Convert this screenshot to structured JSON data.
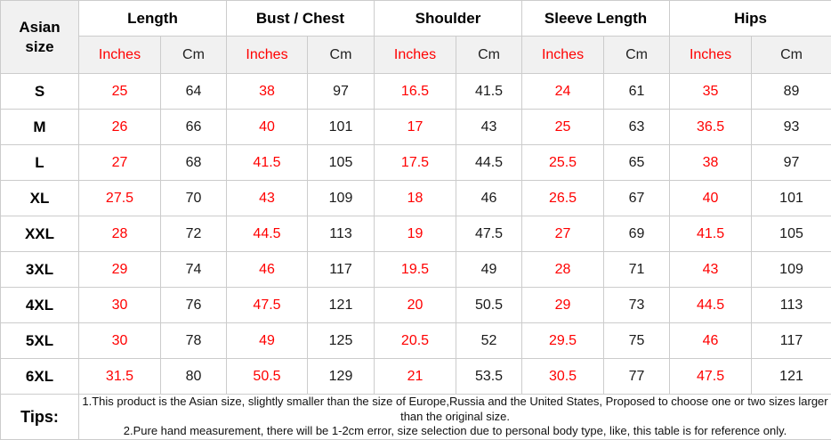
{
  "table": {
    "corner_header": "Asian\nsize",
    "groups": [
      {
        "label": "Length"
      },
      {
        "label": "Bust / Chest"
      },
      {
        "label": "Shoulder"
      },
      {
        "label": "Sleeve Length"
      },
      {
        "label": "Hips"
      }
    ],
    "unit_headers": {
      "inches": "Inches",
      "cm": "Cm"
    },
    "tips": {
      "label": "Tips:",
      "lines": [
        "1.This product is the Asian size, slightly smaller than the size of Europe,Russia and the United States, Proposed to choose one or two sizes larger than the original size.",
        "2.Pure hand measurement, there will be 1-2cm error, size selection due to personal body type, like, this table is for reference only."
      ]
    }
  },
  "colors": {
    "accent_red": "#ff0000",
    "text_dark": "#1c1c1c",
    "grid": "#cccccc",
    "subheader_bg": "#f1f1f1"
  },
  "chart_data": {
    "type": "table",
    "title": "Asian size garment measurement chart",
    "column_groups": [
      "Length",
      "Bust / Chest",
      "Shoulder",
      "Sleeve Length",
      "Hips"
    ],
    "columns": [
      "Asian size",
      "Length (Inches)",
      "Length (Cm)",
      "Bust / Chest (Inches)",
      "Bust / Chest (Cm)",
      "Shoulder (Inches)",
      "Shoulder (Cm)",
      "Sleeve Length (Inches)",
      "Sleeve Length (Cm)",
      "Hips (Inches)",
      "Hips (Cm)"
    ],
    "rows": [
      [
        "S",
        25,
        64,
        38,
        97,
        16.5,
        41.5,
        24,
        61,
        35,
        89
      ],
      [
        "M",
        26,
        66,
        40,
        101,
        17,
        43,
        25,
        63,
        36.5,
        93
      ],
      [
        "L",
        27,
        68,
        41.5,
        105,
        17.5,
        44.5,
        25.5,
        65,
        38,
        97
      ],
      [
        "XL",
        27.5,
        70,
        43,
        109,
        18,
        46,
        26.5,
        67,
        40,
        101
      ],
      [
        "XXL",
        28,
        72,
        44.5,
        113,
        19,
        47.5,
        27,
        69,
        41.5,
        105
      ],
      [
        "3XL",
        29,
        74,
        46,
        117,
        19.5,
        49,
        28,
        71,
        43,
        109
      ],
      [
        "4XL",
        30,
        76,
        47.5,
        121,
        20,
        50.5,
        29,
        73,
        44.5,
        113
      ],
      [
        "5XL",
        30,
        78,
        49,
        125,
        20.5,
        52,
        29.5,
        75,
        46,
        117
      ],
      [
        "6XL",
        31.5,
        80,
        50.5,
        129,
        21,
        53.5,
        30.5,
        77,
        47.5,
        121
      ]
    ]
  }
}
